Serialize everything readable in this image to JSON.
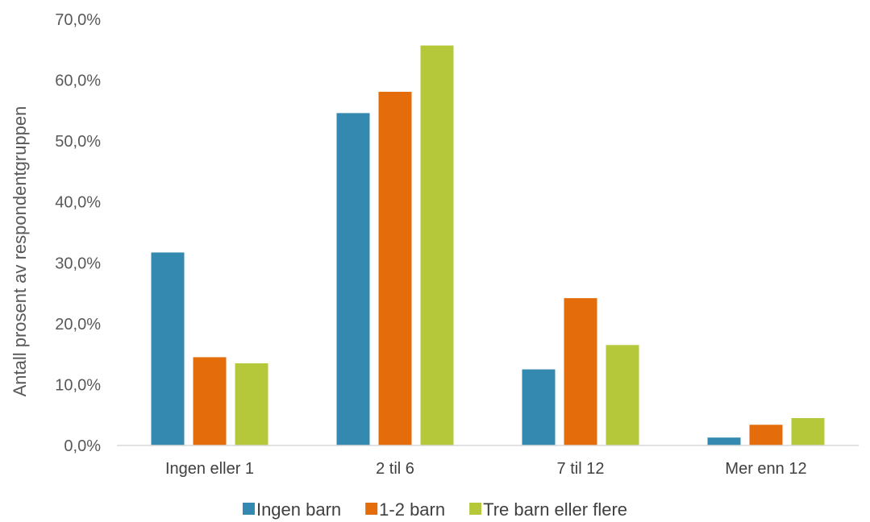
{
  "chart_data": {
    "type": "bar",
    "title": "",
    "xlabel": "",
    "ylabel": "Antall prosent av respondentgruppen",
    "categories": [
      "Ingen eller 1",
      "2 til 6",
      "7 til 12",
      "Mer enn 12"
    ],
    "series": [
      {
        "name": "Ingen barn",
        "color": "#3389b0",
        "values": [
          31.7,
          54.6,
          12.5,
          1.3
        ]
      },
      {
        "name": "1-2 barn",
        "color": "#e46c0a",
        "values": [
          14.5,
          58.1,
          24.2,
          3.4
        ]
      },
      {
        "name": "Tre barn eller flere",
        "color": "#b5c83a",
        "values": [
          13.5,
          65.7,
          16.5,
          4.5
        ]
      }
    ],
    "ylim": [
      0,
      70
    ],
    "yticks": [
      "0,0%",
      "10,0%",
      "20,0%",
      "30,0%",
      "40,0%",
      "50,0%",
      "60,0%",
      "70,0%"
    ],
    "grid": false,
    "legend_position": "bottom"
  }
}
